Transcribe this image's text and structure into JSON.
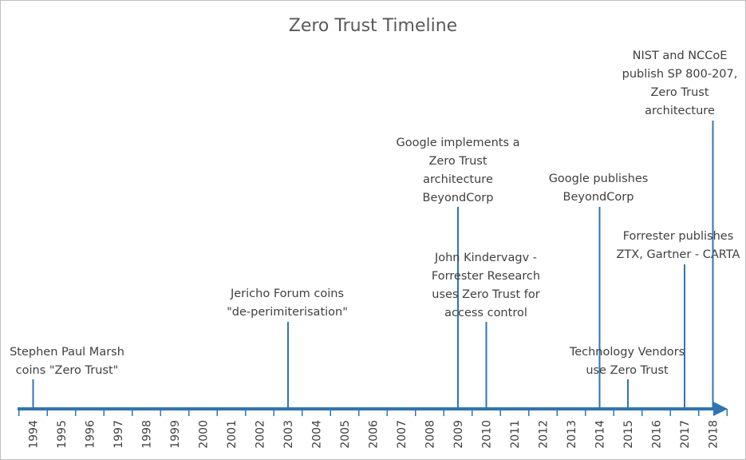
{
  "chart_data": {
    "type": "timeline",
    "title": "Zero Trust Timeline",
    "years": [
      1994,
      1995,
      1996,
      1997,
      1998,
      1999,
      2000,
      2001,
      2002,
      2003,
      2004,
      2005,
      2006,
      2007,
      2008,
      2009,
      2010,
      2011,
      2012,
      2013,
      2014,
      2015,
      2016,
      2017,
      2018
    ],
    "events": [
      {
        "year": 1994,
        "lines": [
          "Stephen Paul Marsh",
          "coins \"Zero Trust\""
        ]
      },
      {
        "year": 2003,
        "lines": [
          "Jericho Forum coins",
          "\"de-perimiterisation\""
        ]
      },
      {
        "year": 2009,
        "lines": [
          "Google implements a",
          "Zero Trust",
          "architecture",
          "BeyondCorp"
        ]
      },
      {
        "year": 2010,
        "lines": [
          "John Kindervagv -",
          "Forrester Research",
          "uses Zero Trust for",
          "access control"
        ]
      },
      {
        "year": 2014,
        "lines": [
          "Google publishes",
          "BeyondCorp"
        ]
      },
      {
        "year": 2015,
        "lines": [
          "Technology Vendors",
          "use Zero Trust"
        ]
      },
      {
        "year": 2017,
        "lines": [
          "Forrester publishes",
          "ZTX, Gartner - CARTA"
        ]
      },
      {
        "year": 2018,
        "lines": [
          "NIST and NCCoE",
          "publish SP 800-207,",
          "Zero Trust",
          "architecture"
        ]
      }
    ],
    "color": "#2e75b6",
    "label_color": "#404040",
    "grid": false
  }
}
